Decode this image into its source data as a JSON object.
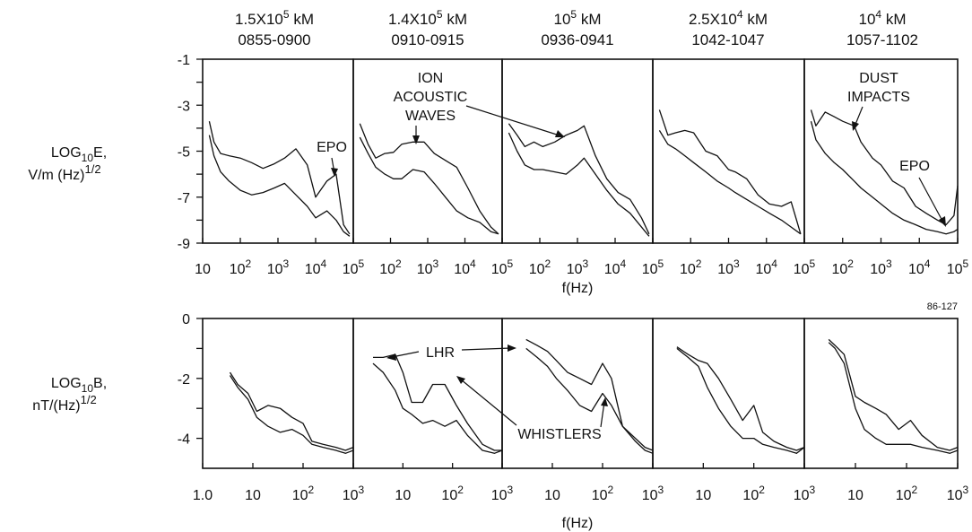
{
  "headers": [
    {
      "dist_base": "1.5X10",
      "dist_exp": "5",
      "dist_unit": "kM",
      "time": "0855-0900"
    },
    {
      "dist_base": "1.4X10",
      "dist_exp": "5",
      "dist_unit": "kM",
      "time": "0910-0915"
    },
    {
      "dist_base": "10",
      "dist_exp": "5",
      "dist_unit": "kM",
      "time": "0936-0941"
    },
    {
      "dist_base": "2.5X10",
      "dist_exp": "4",
      "dist_unit": "kM",
      "time": "1042-1047"
    },
    {
      "dist_base": "10",
      "dist_exp": "4",
      "dist_unit": "kM",
      "time": "1057-1102"
    }
  ],
  "figure_code": "86-127",
  "e_axis": {
    "label_line1_a": "LOG",
    "label_line1_sub": "10",
    "label_line1_b": "E,",
    "label_line2": "V/m (Hz)",
    "label_line2_sup": "1/2",
    "xlabel": "f(Hz)"
  },
  "b_axis": {
    "label_line1_a": "LOG",
    "label_line1_sub": "10",
    "label_line1_b": "B,",
    "label_line2": "nT/(Hz)",
    "label_line2_sup": "1/2",
    "xlabel": "f(Hz)"
  },
  "annotations": {
    "epo": "EPO",
    "ion_line1": "ION",
    "ion_line2": "ACOUSTIC",
    "ion_line3": "WAVES",
    "dust_line1": "DUST",
    "dust_line2": "IMPACTS",
    "lhr": "LHR",
    "whistlers": "WHISTLERS"
  },
  "chart_data": [
    {
      "type": "line",
      "title": "",
      "xlabel": "f(Hz)",
      "ylabel": "LOG10E, V/m (Hz)1/2",
      "xscale": "log",
      "xlim": [
        10,
        100000
      ],
      "ylim": [
        -9,
        -1
      ],
      "yticks": [
        -1,
        -3,
        -5,
        -7,
        -9
      ],
      "ytick_labels": [
        "-1",
        "-3",
        "-5",
        "-7",
        "-9"
      ],
      "xtick_labels": [
        "10",
        "10",
        "10",
        "10",
        "10"
      ],
      "xtick_exps": [
        "",
        "2",
        "3",
        "4",
        "5"
      ],
      "xtick_labels_rest": [
        "10",
        "10",
        "10",
        "10"
      ],
      "xtick_exps_rest": [
        "2",
        "3",
        "4",
        "5"
      ],
      "panels": [
        {
          "series": [
            {
              "x": [
                15,
                20,
                30,
                50,
                100,
                200,
                400,
                800,
                1500,
                3000,
                6000,
                10000,
                20000,
                35000,
                55000,
                80000
              ],
              "y": [
                -3.7,
                -4.6,
                -5.1,
                -5.2,
                -5.3,
                -5.5,
                -5.75,
                -5.55,
                -5.3,
                -4.9,
                -5.6,
                -7.0,
                -6.3,
                -6.0,
                -8.2,
                -8.6
              ]
            },
            {
              "x": [
                15,
                20,
                30,
                50,
                100,
                200,
                400,
                800,
                1500,
                3000,
                6000,
                10000,
                20000,
                35000,
                55000,
                80000
              ],
              "y": [
                -4.3,
                -5.2,
                -5.9,
                -6.3,
                -6.7,
                -6.9,
                -6.8,
                -6.6,
                -6.4,
                -6.9,
                -7.4,
                -7.9,
                -7.6,
                -8.0,
                -8.5,
                -8.7
              ]
            }
          ]
        },
        {
          "series": [
            {
              "x": [
                15,
                25,
                40,
                70,
                120,
                200,
                400,
                800,
                1500,
                3000,
                6000,
                12000,
                25000,
                50000,
                80000
              ],
              "y": [
                -3.8,
                -4.7,
                -5.3,
                -5.1,
                -5.05,
                -4.7,
                -4.6,
                -4.6,
                -5.1,
                -5.4,
                -5.7,
                -6.6,
                -7.6,
                -8.3,
                -8.6
              ]
            },
            {
              "x": [
                15,
                25,
                40,
                70,
                120,
                200,
                400,
                800,
                1500,
                3000,
                6000,
                12000,
                25000,
                50000,
                80000
              ],
              "y": [
                -4.4,
                -5.1,
                -5.7,
                -6.0,
                -6.2,
                -6.2,
                -5.8,
                -5.9,
                -6.4,
                -7.0,
                -7.6,
                -7.9,
                -8.1,
                -8.5,
                -8.6
              ]
            }
          ]
        },
        {
          "series": [
            {
              "x": [
                15,
                25,
                40,
                70,
                120,
                250,
                500,
                1000,
                1500,
                3000,
                6000,
                12000,
                25000,
                50000,
                80000
              ],
              "y": [
                -3.8,
                -4.3,
                -4.8,
                -4.6,
                -4.8,
                -4.6,
                -4.3,
                -4.1,
                -3.9,
                -5.2,
                -6.2,
                -6.8,
                -7.1,
                -7.9,
                -8.6
              ]
            },
            {
              "x": [
                15,
                25,
                40,
                70,
                120,
                250,
                500,
                1000,
                1500,
                3000,
                6000,
                12000,
                25000,
                50000,
                80000
              ],
              "y": [
                -4.2,
                -5.0,
                -5.6,
                -5.8,
                -5.8,
                -5.9,
                -6.0,
                -5.6,
                -5.3,
                -6.0,
                -6.7,
                -7.3,
                -7.7,
                -8.3,
                -8.7
              ]
            }
          ]
        },
        {
          "series": [
            {
              "x": [
                15,
                25,
                40,
                70,
                120,
                250,
                500,
                1000,
                1500,
                3000,
                6000,
                12000,
                25000,
                45000,
                80000
              ],
              "y": [
                -3.2,
                -4.3,
                -4.2,
                -4.1,
                -4.2,
                -5.0,
                -5.2,
                -5.8,
                -5.9,
                -6.2,
                -6.9,
                -7.3,
                -7.4,
                -7.2,
                -8.6
              ]
            },
            {
              "x": [
                15,
                25,
                40,
                70,
                120,
                250,
                500,
                1000,
                1500,
                3000,
                6000,
                12000,
                25000,
                45000,
                80000
              ],
              "y": [
                -4.1,
                -4.7,
                -4.9,
                -5.2,
                -5.5,
                -5.9,
                -6.3,
                -6.6,
                -6.8,
                -7.1,
                -7.4,
                -7.7,
                -8.0,
                -8.3,
                -8.6
              ]
            }
          ]
        },
        {
          "series": [
            {
              "x": [
                15,
                20,
                35,
                60,
                100,
                200,
                300,
                600,
                1000,
                2000,
                4000,
                8000,
                15000,
                30000,
                50000,
                80000,
                100000
              ],
              "y": [
                -3.2,
                -3.9,
                -3.3,
                -3.5,
                -3.7,
                -3.9,
                -4.6,
                -5.3,
                -5.6,
                -6.3,
                -6.6,
                -7.4,
                -7.7,
                -8.0,
                -8.2,
                -7.8,
                -6.5
              ]
            },
            {
              "x": [
                15,
                20,
                35,
                60,
                100,
                200,
                300,
                600,
                1000,
                2000,
                4000,
                8000,
                15000,
                30000,
                50000,
                80000,
                100000
              ],
              "y": [
                -3.7,
                -4.5,
                -5.1,
                -5.5,
                -5.8,
                -6.3,
                -6.6,
                -7.0,
                -7.3,
                -7.7,
                -8.0,
                -8.2,
                -8.4,
                -8.5,
                -8.6,
                -8.5,
                -8.4
              ]
            }
          ]
        }
      ]
    },
    {
      "type": "line",
      "title": "",
      "xlabel": "f(Hz)",
      "ylabel": "LOG10B, nT/(Hz)1/2",
      "xscale": "log",
      "xlim": [
        1,
        1000
      ],
      "ylim": [
        -5,
        0
      ],
      "yticks": [
        0,
        -2,
        -4
      ],
      "ytick_labels": [
        "0",
        "-2",
        "-4"
      ],
      "xtick_labels": [
        "1.0",
        "10",
        "10",
        "10"
      ],
      "xtick_exps": [
        "",
        "",
        "2",
        "3"
      ],
      "xtick_labels_rest": [
        "10",
        "10",
        "10"
      ],
      "xtick_exps_rest": [
        "",
        "2",
        "3"
      ],
      "panels": [
        {
          "series": [
            {
              "x": [
                3.5,
                5,
                8,
                12,
                20,
                35,
                60,
                100,
                150,
                250,
                450,
                700,
                1000
              ],
              "y": [
                -1.8,
                -2.2,
                -2.5,
                -3.1,
                -2.9,
                -3.0,
                -3.3,
                -3.5,
                -4.1,
                -4.2,
                -4.3,
                -4.4,
                -4.3
              ]
            },
            {
              "x": [
                3.5,
                5,
                8,
                12,
                20,
                35,
                60,
                100,
                150,
                250,
                450,
                700,
                1000
              ],
              "y": [
                -1.9,
                -2.3,
                -2.7,
                -3.3,
                -3.6,
                -3.8,
                -3.7,
                -3.9,
                -4.2,
                -4.3,
                -4.4,
                -4.5,
                -4.4
              ]
            }
          ]
        },
        {
          "series": [
            {
              "x": [
                2.5,
                4,
                7,
                10,
                15,
                25,
                40,
                70,
                120,
                200,
                400,
                700,
                1000
              ],
              "y": [
                -1.3,
                -1.3,
                -1.2,
                -1.8,
                -2.8,
                -2.8,
                -2.2,
                -2.2,
                -2.9,
                -3.5,
                -4.2,
                -4.4,
                -4.4
              ]
            },
            {
              "x": [
                2.5,
                4,
                7,
                10,
                15,
                25,
                40,
                70,
                120,
                200,
                400,
                700,
                1000
              ],
              "y": [
                -1.5,
                -1.8,
                -2.4,
                -3.0,
                -3.2,
                -3.5,
                -3.4,
                -3.6,
                -3.4,
                -3.9,
                -4.4,
                -4.5,
                -4.4
              ]
            }
          ]
        },
        {
          "series": [
            {
              "x": [
                3,
                5,
                8,
                12,
                20,
                35,
                60,
                100,
                150,
                250,
                450,
                700,
                1000
              ],
              "y": [
                -0.7,
                -0.9,
                -1.1,
                -1.4,
                -1.8,
                -2.0,
                -2.2,
                -1.5,
                -2.0,
                -3.6,
                -4.0,
                -4.3,
                -4.4
              ]
            },
            {
              "x": [
                3,
                5,
                8,
                12,
                20,
                35,
                60,
                100,
                150,
                250,
                450,
                700,
                1000
              ],
              "y": [
                -1.0,
                -1.3,
                -1.6,
                -2.0,
                -2.4,
                -2.9,
                -3.1,
                -2.5,
                -2.9,
                -3.6,
                -4.1,
                -4.4,
                -4.5
              ]
            }
          ]
        },
        {
          "series": [
            {
              "x": [
                3,
                5,
                8,
                12,
                20,
                35,
                60,
                100,
                150,
                250,
                450,
                700,
                1000
              ],
              "y": [
                -0.95,
                -1.2,
                -1.4,
                -1.5,
                -2.0,
                -2.7,
                -3.4,
                -2.9,
                -3.8,
                -4.1,
                -4.3,
                -4.4,
                -4.3
              ]
            },
            {
              "x": [
                3,
                5,
                8,
                12,
                20,
                35,
                60,
                100,
                150,
                250,
                450,
                700,
                1000
              ],
              "y": [
                -1.0,
                -1.3,
                -1.6,
                -2.3,
                -3.0,
                -3.6,
                -4.0,
                -4.0,
                -4.2,
                -4.3,
                -4.4,
                -4.5,
                -4.3
              ]
            }
          ]
        },
        {
          "series": [
            {
              "x": [
                3,
                4,
                6,
                10,
                15,
                25,
                40,
                70,
                120,
                200,
                400,
                700,
                1000
              ],
              "y": [
                -0.7,
                -0.9,
                -1.2,
                -2.6,
                -2.8,
                -3.0,
                -3.2,
                -3.7,
                -3.4,
                -3.9,
                -4.3,
                -4.4,
                -4.3
              ]
            },
            {
              "x": [
                3,
                4,
                6,
                10,
                15,
                25,
                40,
                70,
                120,
                200,
                400,
                700,
                1000
              ],
              "y": [
                -0.8,
                -1.0,
                -1.5,
                -3.0,
                -3.7,
                -4.0,
                -4.2,
                -4.2,
                -4.2,
                -4.3,
                -4.4,
                -4.5,
                -4.4
              ]
            }
          ]
        }
      ]
    }
  ]
}
